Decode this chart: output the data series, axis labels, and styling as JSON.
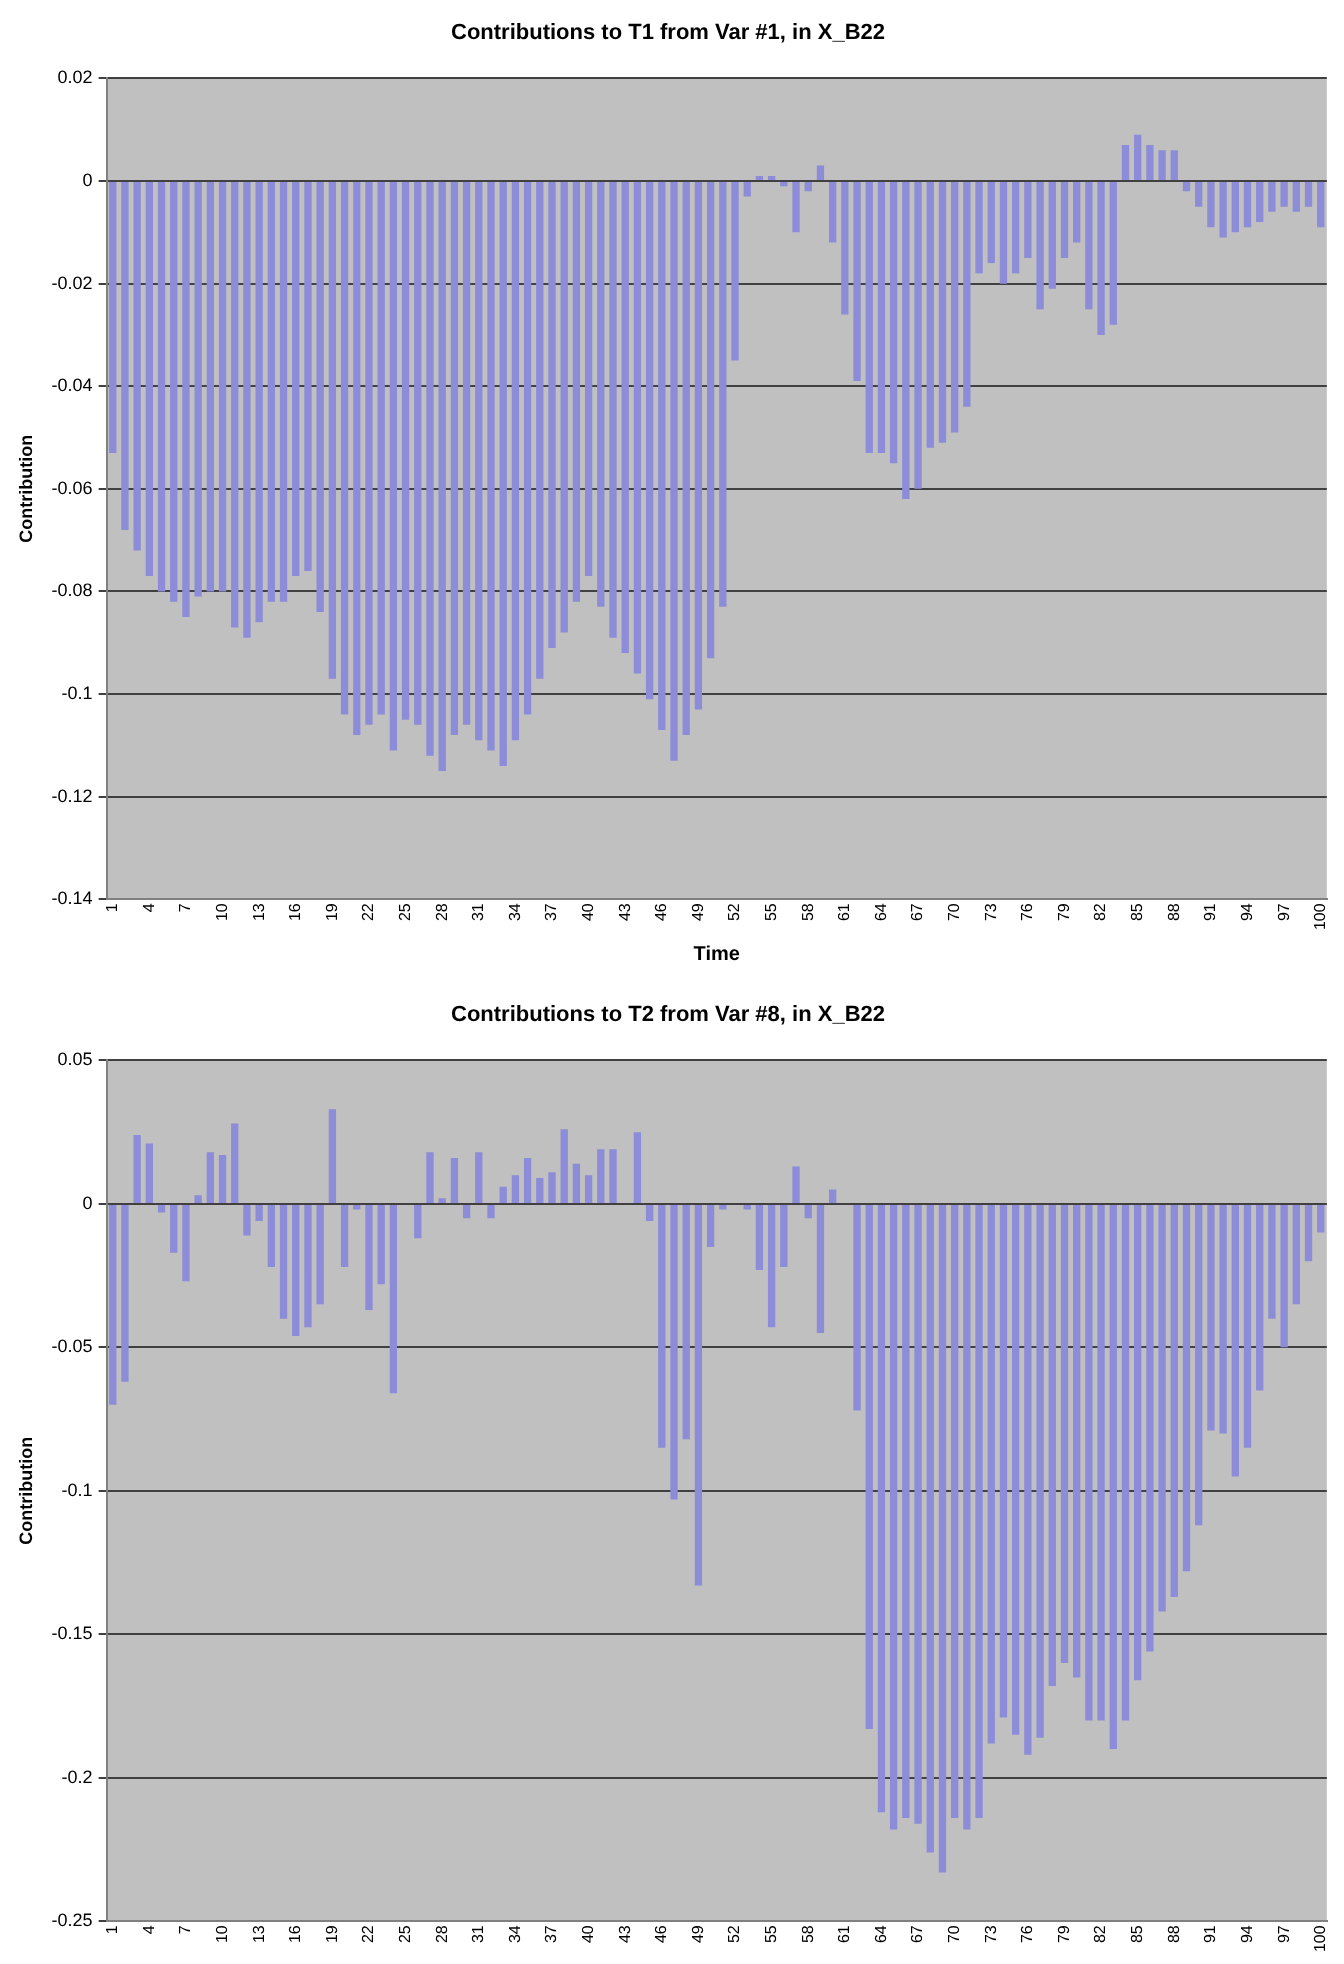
{
  "chart_data": [
    {
      "type": "bar",
      "title": "Contributions to T1 from Var #1, in X_B22",
      "xlabel": "Time",
      "ylabel": "Contribution",
      "color": "#8c8cd8",
      "categories": [
        "1",
        null,
        null,
        "4",
        null,
        null,
        "7",
        null,
        null,
        "10",
        null,
        null,
        "13",
        null,
        null,
        "16",
        null,
        null,
        "19",
        null,
        null,
        "22",
        null,
        null,
        "25",
        null,
        null,
        "28",
        null,
        null,
        "31",
        null,
        null,
        "34",
        null,
        null,
        "37",
        null,
        null,
        "40",
        null,
        null,
        "43",
        null,
        null,
        "46",
        null,
        null,
        "49",
        null,
        null,
        "52",
        null,
        null,
        "55",
        null,
        null,
        "58",
        null,
        null,
        "61",
        null,
        null,
        "64",
        null,
        null,
        "67",
        null,
        null,
        "70",
        null,
        null,
        "73",
        null,
        null,
        "76",
        null,
        null,
        "79",
        null,
        null,
        "82",
        null,
        null,
        "85",
        null,
        null,
        "88",
        null,
        null,
        "91",
        null,
        null,
        "94",
        null,
        null,
        "97",
        null,
        null,
        "100"
      ],
      "values": [
        -0.053,
        -0.068,
        -0.072,
        -0.077,
        -0.08,
        -0.082,
        -0.085,
        -0.081,
        -0.08,
        -0.08,
        -0.087,
        -0.089,
        -0.086,
        -0.082,
        -0.082,
        -0.077,
        -0.076,
        -0.084,
        -0.097,
        -0.104,
        -0.108,
        -0.106,
        -0.104,
        -0.111,
        -0.105,
        -0.106,
        -0.112,
        -0.115,
        -0.108,
        -0.106,
        -0.109,
        -0.111,
        -0.114,
        -0.109,
        -0.104,
        -0.097,
        -0.091,
        -0.088,
        -0.082,
        -0.077,
        -0.083,
        -0.089,
        -0.092,
        -0.096,
        -0.101,
        -0.107,
        -0.113,
        -0.108,
        -0.103,
        -0.093,
        -0.083,
        -0.035,
        -0.003,
        0.001,
        0.001,
        -0.001,
        -0.01,
        -0.002,
        0.003,
        -0.012,
        -0.026,
        -0.039,
        -0.053,
        -0.053,
        -0.055,
        -0.062,
        -0.06,
        -0.052,
        -0.051,
        -0.049,
        -0.044,
        -0.018,
        -0.016,
        -0.02,
        -0.018,
        -0.015,
        -0.025,
        -0.021,
        -0.015,
        -0.012,
        -0.025,
        -0.03,
        -0.028,
        0.007,
        0.009,
        0.007,
        0.006,
        0.006,
        -0.002,
        -0.005,
        -0.009,
        -0.011,
        -0.01,
        -0.009,
        -0.008,
        -0.006,
        -0.005,
        -0.006,
        -0.005,
        -0.009
      ],
      "ylim": [
        -0.14,
        0.02
      ],
      "yticks": [
        0.02,
        0,
        -0.02,
        -0.04,
        -0.06,
        -0.08,
        -0.1,
        -0.12,
        -0.14
      ],
      "grid": "y",
      "legend": false
    },
    {
      "type": "bar",
      "title": "Contributions to T2 from Var #8, in X_B22",
      "ylabel": "Contribution",
      "color": "#8c8cd8",
      "categories": [
        "1",
        null,
        null,
        "4",
        null,
        null,
        "7",
        null,
        null,
        "10",
        null,
        null,
        "13",
        null,
        null,
        "16",
        null,
        null,
        "19",
        null,
        null,
        "22",
        null,
        null,
        "25",
        null,
        null,
        "28",
        null,
        null,
        "31",
        null,
        null,
        "34",
        null,
        null,
        "37",
        null,
        null,
        "40",
        null,
        null,
        "43",
        null,
        null,
        "46",
        null,
        null,
        "49",
        null,
        null,
        "52",
        null,
        null,
        "55",
        null,
        null,
        "58",
        null,
        null,
        "61",
        null,
        null,
        "64",
        null,
        null,
        "67",
        null,
        null,
        "70",
        null,
        null,
        "73",
        null,
        null,
        "76",
        null,
        null,
        "79",
        null,
        null,
        "82",
        null,
        null,
        "85",
        null,
        null,
        "88",
        null,
        null,
        "91",
        null,
        null,
        "94",
        null,
        null,
        "97",
        null,
        null,
        "100"
      ],
      "values": [
        -0.07,
        -0.062,
        0.024,
        0.021,
        -0.003,
        -0.017,
        -0.027,
        0.003,
        0.018,
        0.017,
        0.028,
        -0.011,
        -0.006,
        -0.022,
        -0.04,
        -0.046,
        -0.043,
        -0.035,
        0.033,
        -0.022,
        -0.002,
        -0.037,
        -0.028,
        -0.066,
        null,
        -0.012,
        0.018,
        0.002,
        0.016,
        -0.005,
        0.018,
        -0.005,
        0.006,
        0.01,
        0.016,
        0.009,
        0.011,
        0.026,
        0.014,
        0.01,
        0.019,
        0.019,
        null,
        0.025,
        -0.006,
        -0.085,
        -0.103,
        -0.082,
        -0.133,
        -0.015,
        -0.002,
        null,
        -0.002,
        -0.023,
        -0.043,
        -0.022,
        0.013,
        -0.005,
        -0.045,
        0.005,
        null,
        -0.072,
        -0.183,
        -0.212,
        -0.218,
        -0.214,
        -0.216,
        -0.226,
        -0.233,
        -0.214,
        -0.218,
        -0.214,
        -0.188,
        -0.179,
        -0.185,
        -0.192,
        -0.186,
        -0.168,
        -0.16,
        -0.165,
        -0.18,
        -0.18,
        -0.19,
        -0.18,
        -0.166,
        -0.156,
        -0.142,
        -0.137,
        -0.128,
        -0.112,
        -0.079,
        -0.08,
        -0.095,
        -0.085,
        -0.065,
        -0.04,
        -0.05,
        -0.035,
        -0.02,
        -0.01
      ],
      "ylim": [
        -0.25,
        0.05
      ],
      "yticks": [
        0.05,
        0,
        -0.05,
        -0.1,
        -0.15,
        -0.2,
        -0.25
      ],
      "grid": "y",
      "legend": false
    }
  ]
}
